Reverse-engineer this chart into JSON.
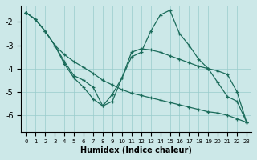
{
  "xlabel": "Humidex (Indice chaleur)",
  "background_color": "#cce8e8",
  "grid_color": "#99cccc",
  "line_color": "#1a6b5a",
  "xlim": [
    -0.5,
    23.5
  ],
  "ylim": [
    -6.7,
    -1.3
  ],
  "xticks": [
    0,
    1,
    2,
    3,
    4,
    5,
    6,
    7,
    8,
    9,
    10,
    11,
    12,
    13,
    14,
    15,
    16,
    17,
    18,
    19,
    20,
    21,
    22,
    23
  ],
  "yticks": [
    -6,
    -5,
    -4,
    -3,
    -2
  ],
  "x": [
    0,
    1,
    2,
    3,
    4,
    5,
    6,
    7,
    8,
    9,
    10,
    11,
    12,
    13,
    14,
    15,
    16,
    17,
    18,
    19,
    20,
    21,
    22,
    23
  ],
  "line1": [
    -1.6,
    -1.9,
    -2.4,
    -3.0,
    -3.4,
    -3.7,
    -3.95,
    -4.2,
    -4.5,
    -4.7,
    -4.9,
    -5.05,
    -5.15,
    -5.25,
    -5.35,
    -5.45,
    -5.55,
    -5.65,
    -5.75,
    -5.85,
    -5.9,
    -6.0,
    -6.15,
    -6.3
  ],
  "line2": [
    -1.6,
    -1.9,
    -2.4,
    -3.0,
    -3.8,
    -4.4,
    -4.8,
    -5.3,
    -5.6,
    -5.1,
    -4.4,
    -3.5,
    -3.3,
    -2.4,
    -1.7,
    -1.5,
    -2.5,
    -3.0,
    -3.6,
    -4.0,
    -4.6,
    -5.2,
    -5.4,
    -6.3
  ],
  "line3": [
    -1.6,
    -1.9,
    -2.4,
    -3.0,
    -3.7,
    -4.3,
    -4.5,
    -4.8,
    -5.6,
    -5.4,
    -4.4,
    -3.3,
    -3.15,
    -3.2,
    -3.3,
    -3.45,
    -3.6,
    -3.75,
    -3.9,
    -4.0,
    -4.1,
    -4.25,
    -5.0,
    -6.3
  ]
}
